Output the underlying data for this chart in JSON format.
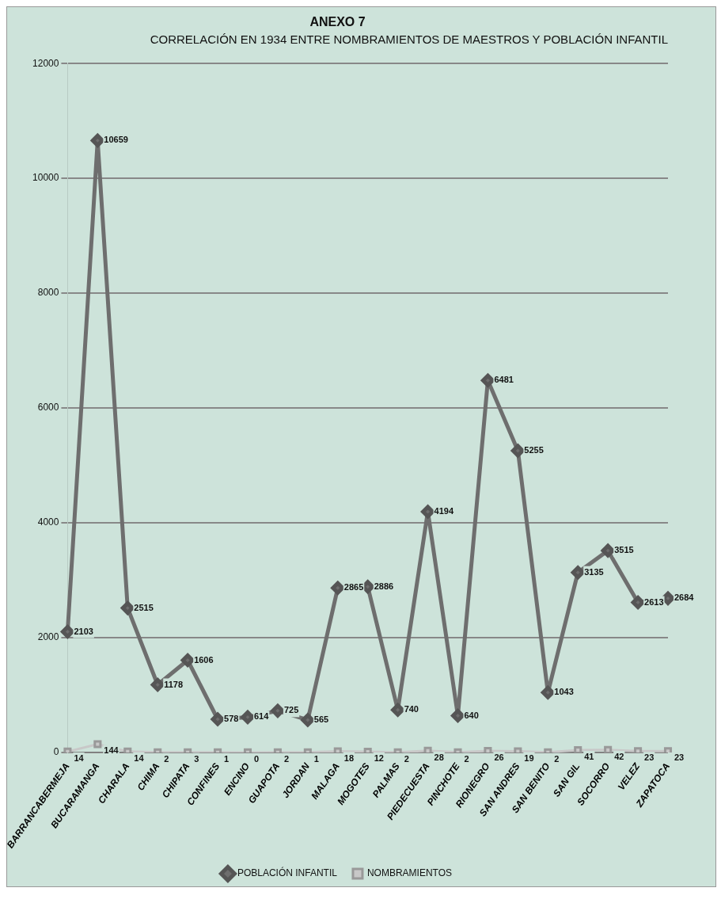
{
  "chart_data": {
    "type": "line",
    "title": "ANEXO 7",
    "subtitle": "CORRELACIÓN EN 1934 ENTRE NOMBRAMIENTOS DE MAESTROS Y POBLACIÓN INFANTIL",
    "categories": [
      "BARRANCABERMEJA",
      "BUCARAMANGA",
      "CHARALA",
      "CHIMA",
      "CHIPATA",
      "CONFINES",
      "ENCINO",
      "GUAPOTA",
      "JORDAN",
      "MALAGA",
      "MOGOTES",
      "PALMAS",
      "PIEDECUESTA",
      "PINCHOTE",
      "RIONEGRO",
      "SAN ANDRES",
      "SAN BENITO",
      "SAN GIL",
      "SOCORRO",
      "VELEZ",
      "ZAPATOCA"
    ],
    "series": [
      {
        "name": "POBLACIÓN INFANTIL",
        "color": "#6e6e6e",
        "marker": "diamond",
        "values": [
          2103,
          10659,
          2515,
          1178,
          1606,
          578,
          614,
          725,
          565,
          2865,
          2886,
          740,
          4194,
          640,
          6481,
          5255,
          1043,
          3135,
          3515,
          2613,
          2684
        ]
      },
      {
        "name": "NOMBRAMIENTOS",
        "color": "#c8c8c8",
        "marker": "square",
        "values": [
          14,
          144,
          14,
          2,
          3,
          1,
          0,
          2,
          1,
          18,
          12,
          2,
          28,
          2,
          26,
          19,
          2,
          41,
          42,
          23,
          23
        ]
      }
    ],
    "ylim": [
      0,
      12000
    ],
    "yticks": [
      0,
      2000,
      4000,
      6000,
      8000,
      10000,
      12000
    ],
    "grid": "y",
    "legend": "bottom",
    "data_labels": true
  }
}
